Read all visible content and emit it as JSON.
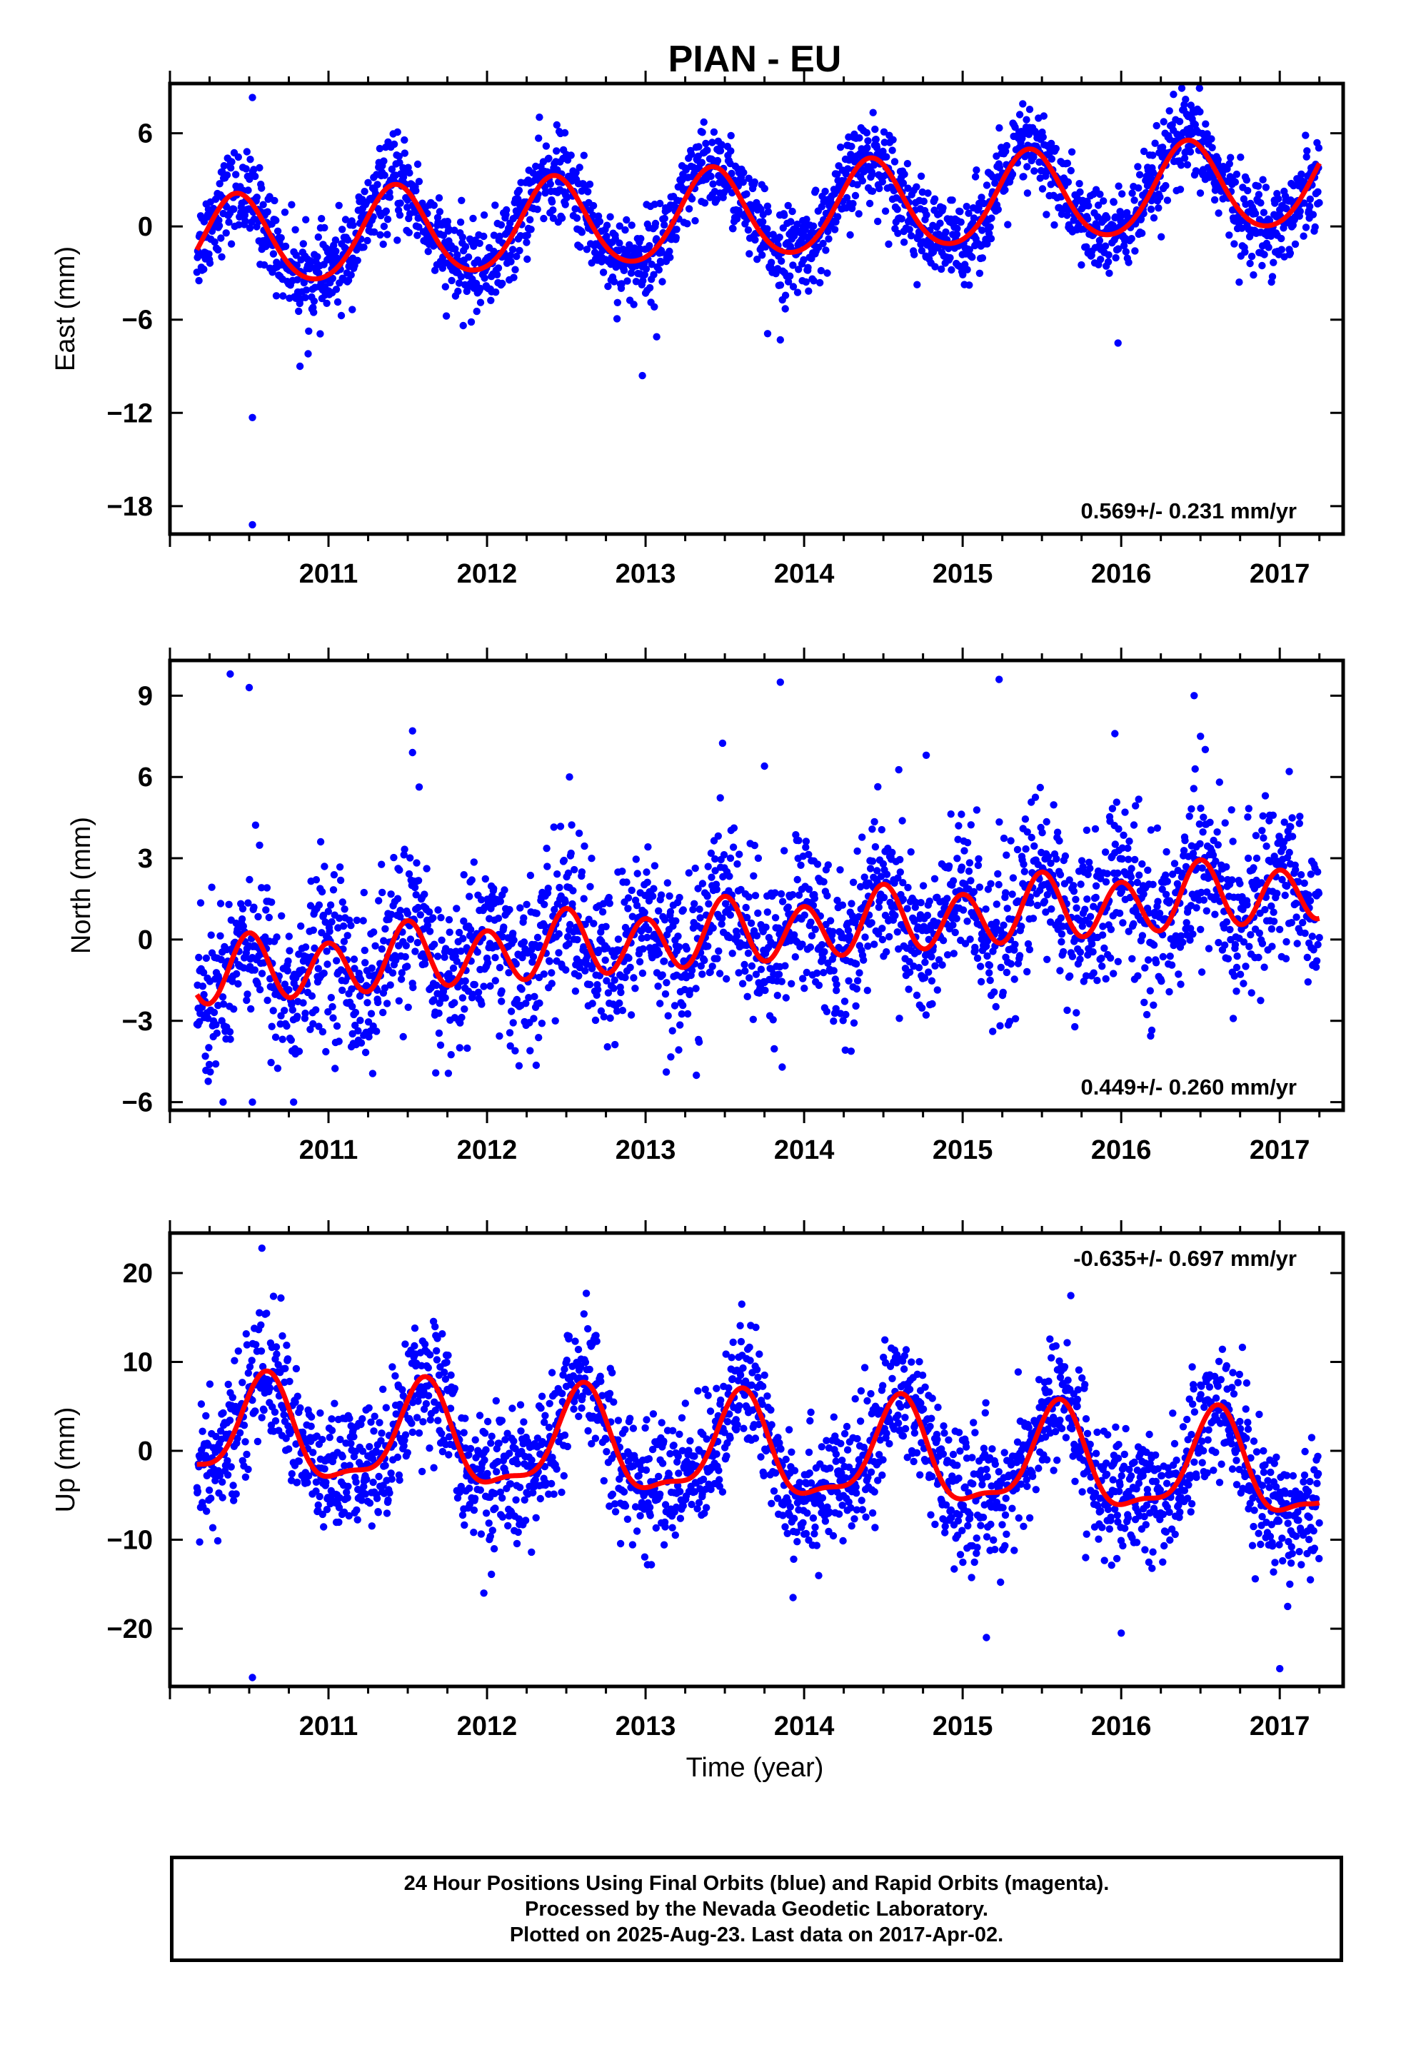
{
  "title": "PIAN - EU",
  "x_axis_title": "Time (year)",
  "caption": {
    "line1": "24 Hour Positions Using Final Orbits (blue) and Rapid Orbits (magenta).",
    "line2": "Processed by the Nevada Geodetic Laboratory.",
    "line3": "Plotted on 2025-Aug-23. Last data on 2017-Apr-02."
  },
  "colors": {
    "points": "#0000ff",
    "fit": "#ff0000",
    "frame": "#000000"
  },
  "chart_data": [
    {
      "type": "scatter",
      "ylabel": "East (mm)",
      "rate_label": "0.569+/- 0.231 mm/yr",
      "rate_position": "bottom-right",
      "xlim": [
        2010.0,
        2017.4
      ],
      "ylim": [
        -19.8,
        9.2
      ],
      "yticks": [
        6,
        0,
        -6,
        -12,
        -18
      ],
      "xticks": [
        2011,
        2012,
        2013,
        2014,
        2015,
        2016,
        2017
      ],
      "x_start": 2010.17,
      "x_end": 2017.25,
      "fit": {
        "offset": -1.2,
        "slope": 0.569,
        "annual_amp": 2.9,
        "annual_phase_year": 2010.42,
        "semi_amp": 0.3
      },
      "scatter_sd": 1.4,
      "outliers": [
        [
          2010.52,
          8.3
        ],
        [
          2010.52,
          -12.3
        ],
        [
          2010.52,
          -19.2
        ],
        [
          2010.82,
          -9.0
        ],
        [
          2012.98,
          -9.6
        ],
        [
          2013.07,
          -7.1
        ],
        [
          2013.77,
          -6.9
        ],
        [
          2013.85,
          -7.3
        ],
        [
          2016.33,
          8.5
        ],
        [
          2015.98,
          -7.5
        ],
        [
          2015.36,
          7.2
        ]
      ],
      "series": [
        {
          "name": "Final Orbits",
          "kind": "points"
        },
        {
          "name": "Model fit",
          "kind": "line"
        }
      ]
    },
    {
      "type": "scatter",
      "ylabel": "North (mm)",
      "rate_label": "0.449+/- 0.260 mm/yr",
      "rate_position": "bottom-right",
      "xlim": [
        2010.0,
        2017.4
      ],
      "ylim": [
        -6.3,
        10.3
      ],
      "yticks": [
        9,
        6,
        3,
        0,
        -3,
        -6
      ],
      "xticks": [
        2011,
        2012,
        2013,
        2014,
        2015,
        2016,
        2017
      ],
      "x_start": 2010.17,
      "x_end": 2017.25,
      "fit": {
        "offset": -1.3,
        "slope": 0.449,
        "annual_amp": 0.3,
        "annual_phase_year": 2010.5,
        "semi_amp": 1.1,
        "semi_phase_year": 2010.5
      },
      "scatter_sd": 1.5,
      "outliers": [
        [
          2010.38,
          9.8
        ],
        [
          2010.5,
          9.3
        ],
        [
          2011.53,
          7.7
        ],
        [
          2011.53,
          6.9
        ],
        [
          2013.85,
          9.5
        ],
        [
          2015.23,
          9.6
        ],
        [
          2015.96,
          7.6
        ],
        [
          2016.46,
          9.0
        ],
        [
          2016.5,
          7.5
        ],
        [
          2017.06,
          6.2
        ],
        [
          2012.52,
          6.0
        ],
        [
          2013.75,
          6.4
        ],
        [
          2014.77,
          6.8
        ],
        [
          2010.52,
          -6.0
        ],
        [
          2010.78,
          -6.0
        ]
      ],
      "series": [
        {
          "name": "Final Orbits",
          "kind": "points"
        },
        {
          "name": "Model fit",
          "kind": "line"
        }
      ]
    },
    {
      "type": "scatter",
      "ylabel": "Up (mm)",
      "rate_label": "-0.635+/- 0.697 mm/yr",
      "rate_position": "top-right",
      "xlim": [
        2010.0,
        2017.4
      ],
      "ylim": [
        -26.5,
        24.5
      ],
      "yticks": [
        20,
        10,
        0,
        -10,
        -20
      ],
      "xticks": [
        2011,
        2012,
        2013,
        2014,
        2015,
        2016,
        2017
      ],
      "x_start": 2010.17,
      "x_end": 2017.25,
      "fit": {
        "offset": 2.0,
        "slope": -0.635,
        "annual_amp": 5.5,
        "annual_phase_year": 2010.6,
        "semi_amp": 1.8,
        "semi_phase_year": 2010.62
      },
      "scatter_sd": 3.6,
      "outliers": [
        [
          2010.58,
          22.8
        ],
        [
          2010.52,
          -25.5
        ],
        [
          2011.98,
          -16.0
        ],
        [
          2013.93,
          -16.5
        ],
        [
          2015.15,
          -21.0
        ],
        [
          2016.0,
          -20.5
        ],
        [
          2017.0,
          -24.5
        ],
        [
          2017.05,
          -17.5
        ]
      ],
      "series": [
        {
          "name": "Final Orbits",
          "kind": "points"
        },
        {
          "name": "Model fit",
          "kind": "line"
        }
      ]
    }
  ]
}
